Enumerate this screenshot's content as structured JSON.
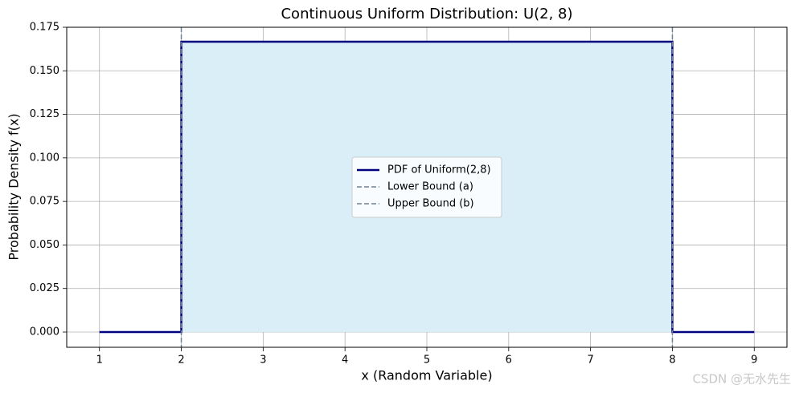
{
  "chart_data": {
    "type": "line",
    "title": "Continuous Uniform Distribution: U(2, 8)",
    "xlabel": "x (Random Variable)",
    "ylabel": "Probability Density f(x)",
    "xlim": [
      0.6,
      9.4
    ],
    "ylim": [
      -0.00875,
      0.175
    ],
    "xticks": [
      1,
      2,
      3,
      4,
      5,
      6,
      7,
      8,
      9
    ],
    "yticks": [
      {
        "value": 0,
        "label": "0.000"
      },
      {
        "value": 0.025,
        "label": "0.025"
      },
      {
        "value": 0.05,
        "label": "0.050"
      },
      {
        "value": 0.075,
        "label": "0.075"
      },
      {
        "value": 0.1,
        "label": "0.100"
      },
      {
        "value": 0.125,
        "label": "0.125"
      },
      {
        "value": 0.15,
        "label": "0.150"
      },
      {
        "value": 0.175,
        "label": "0.175"
      }
    ],
    "grid": true,
    "legend": "center",
    "series": [
      {
        "name": "PDF of Uniform(2,8)",
        "color": "#000080",
        "fill": "#d9eef7",
        "x": [
          1,
          2,
          2,
          8,
          8,
          9
        ],
        "values": [
          0,
          0,
          0.1667,
          0.1667,
          0,
          0
        ]
      }
    ],
    "vlines": [
      {
        "name": "Lower Bound (a)",
        "x": 2,
        "color": "#708090"
      },
      {
        "name": "Upper Bound (b)",
        "x": 8,
        "color": "#708090"
      }
    ]
  },
  "watermark": "CSDN @无水先生"
}
